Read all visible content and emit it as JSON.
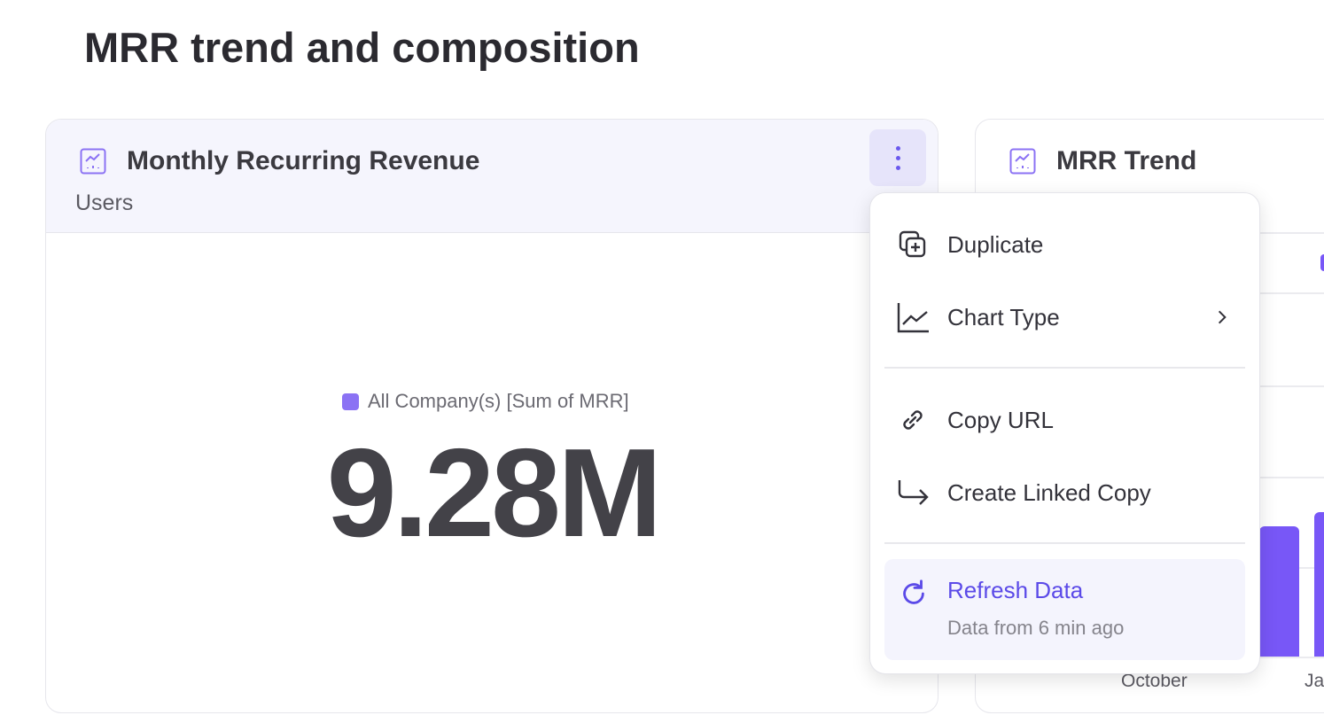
{
  "page_title": "MRR trend and composition",
  "card1": {
    "title": "Monthly Recurring Revenue",
    "subtitle": "Users",
    "legend": "All Company(s) [Sum of MRR]",
    "value": "9.28M",
    "icon": "chart-line-icon",
    "more_icon": "kebab-vertical-icon"
  },
  "card2": {
    "title": "MRR Trend",
    "icon": "chart-line-icon",
    "x_labels": [
      "October",
      "Ja"
    ]
  },
  "menu": {
    "items": [
      {
        "label": "Duplicate",
        "icon": "duplicate-icon"
      },
      {
        "label": "Chart Type",
        "icon": "line-chart-icon",
        "submenu": true
      },
      {
        "label": "Copy URL",
        "icon": "link-icon"
      },
      {
        "label": "Create Linked Copy",
        "icon": "arrow-corner-down-right-icon"
      }
    ],
    "refresh": {
      "label": "Refresh Data",
      "detail": "Data from 6 min ago",
      "icon": "refresh-icon"
    }
  },
  "colors": {
    "accent": "#6a58ee",
    "bar": "#7857f7",
    "header_bg": "#f5f5fd"
  }
}
